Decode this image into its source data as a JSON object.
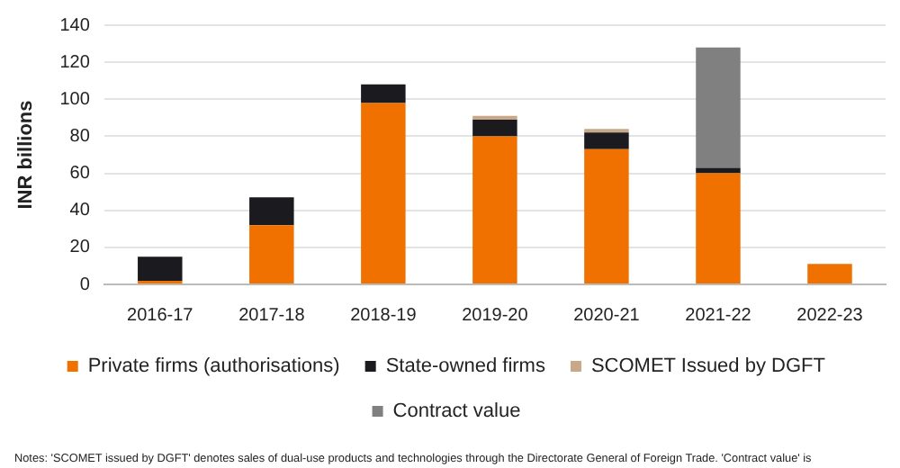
{
  "chart_data": {
    "type": "bar",
    "stacked": true,
    "ylabel": "INR billions",
    "categories": [
      "2016-17",
      "2017-18",
      "2018-19",
      "2019-20",
      "2020-21",
      "2021-22",
      "2022-23"
    ],
    "series": [
      {
        "name": "Private firms (authorisations)",
        "color": "#f07000",
        "values": [
          2,
          32,
          98,
          80,
          73,
          60,
          11
        ]
      },
      {
        "name": "State-owned firms",
        "color": "#1a1a1f",
        "values": [
          13,
          15,
          10,
          9,
          9,
          3,
          null
        ]
      },
      {
        "name": "SCOMET Issued by DGFT",
        "color": "#c8a888",
        "values": [
          null,
          null,
          null,
          2,
          2,
          null,
          null
        ]
      },
      {
        "name": "Contract value",
        "color": "#808080",
        "values": [
          null,
          null,
          null,
          null,
          null,
          65,
          null
        ]
      }
    ],
    "ylim": [
      0,
      140
    ],
    "yticks": [
      0,
      20,
      40,
      60,
      80,
      100,
      120,
      140
    ],
    "grid": "y",
    "legend": "bottom",
    "annotations": [
      "Notes: 'SCOMET issued by DGFT' denotes sales of dual-use products and technologies through the Directorate General of Foreign Trade. 'Contract value' is"
    ]
  }
}
